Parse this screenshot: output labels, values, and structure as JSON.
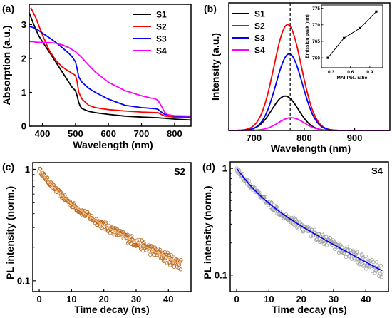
{
  "chart_data": [
    {
      "panel": "(a)",
      "type": "line",
      "xlabel": "Wavelength (nm)",
      "ylabel": "Absorption (a.u.)",
      "xlim": [
        360,
        850
      ],
      "ylim": [
        0,
        3.6
      ],
      "xticks": [
        400,
        500,
        600,
        700,
        800
      ],
      "yticks": [
        0,
        1,
        2,
        3
      ],
      "legend": "top-right",
      "series": [
        {
          "name": "S1",
          "color": "#000000",
          "x": [
            360,
            370,
            380,
            390,
            400,
            420,
            440,
            460,
            480,
            490,
            500,
            505,
            510,
            515,
            520,
            540,
            560,
            600,
            650,
            700,
            750,
            800,
            850
          ],
          "y": [
            3.35,
            3.1,
            2.85,
            2.65,
            2.5,
            2.2,
            1.9,
            1.6,
            1.3,
            1.15,
            1.05,
            0.9,
            0.7,
            0.58,
            0.52,
            0.44,
            0.4,
            0.35,
            0.3,
            0.27,
            0.25,
            0.21,
            0.18
          ]
        },
        {
          "name": "S2",
          "color": "#ff0000",
          "x": [
            365,
            370,
            380,
            390,
            400,
            420,
            440,
            460,
            480,
            490,
            500,
            505,
            510,
            520,
            540,
            560,
            600,
            650,
            700,
            750,
            760,
            770,
            800,
            850
          ],
          "y": [
            3.5,
            3.4,
            3.2,
            2.95,
            2.7,
            2.25,
            1.95,
            1.75,
            1.62,
            1.56,
            1.5,
            1.32,
            1.0,
            0.8,
            0.62,
            0.55,
            0.49,
            0.45,
            0.42,
            0.4,
            0.35,
            0.3,
            0.27,
            0.25
          ]
        },
        {
          "name": "S3",
          "color": "#0000ff",
          "x": [
            360,
            370,
            380,
            390,
            400,
            420,
            440,
            460,
            480,
            490,
            500,
            505,
            510,
            520,
            540,
            560,
            600,
            650,
            700,
            740,
            750,
            760,
            770,
            800,
            850
          ],
          "y": [
            2.95,
            2.92,
            2.88,
            2.82,
            2.75,
            2.62,
            2.48,
            2.32,
            2.15,
            2.05,
            1.9,
            1.7,
            1.45,
            1.3,
            1.12,
            1.0,
            0.8,
            0.62,
            0.55,
            0.52,
            0.5,
            0.42,
            0.35,
            0.3,
            0.28
          ]
        },
        {
          "name": "S4",
          "color": "#ff00ff",
          "x": [
            360,
            370,
            380,
            400,
            420,
            440,
            460,
            480,
            500,
            520,
            540,
            560,
            600,
            650,
            700,
            730,
            740,
            750,
            760,
            770,
            780,
            800,
            850
          ],
          "y": [
            2.5,
            2.5,
            2.48,
            2.47,
            2.47,
            2.45,
            2.4,
            2.32,
            2.2,
            2.02,
            1.8,
            1.6,
            1.3,
            1.05,
            0.9,
            0.83,
            0.82,
            0.76,
            0.6,
            0.42,
            0.34,
            0.31,
            0.3
          ]
        }
      ]
    },
    {
      "panel": "(b)",
      "type": "line",
      "xlabel": "Wavelength (nm)",
      "ylabel": "Intensity (a.u.)",
      "xlim": [
        650,
        970
      ],
      "xticks": [
        700,
        800,
        900
      ],
      "ylim": [
        0,
        1.0
      ],
      "legend": "top-left",
      "peak_marker_nm": 772,
      "series": [
        {
          "name": "S1",
          "color": "#000000",
          "center": 762,
          "fwhm": 62,
          "amplitude": 0.27
        },
        {
          "name": "S2",
          "color": "#ff0000",
          "center": 767,
          "fwhm": 64,
          "amplitude": 0.83
        },
        {
          "name": "S3",
          "color": "#0000ff",
          "center": 770,
          "fwhm": 62,
          "amplitude": 0.6
        },
        {
          "name": "S4",
          "color": "#ff00ff",
          "center": 774,
          "fwhm": 60,
          "amplitude": 0.1
        }
      ],
      "inset": {
        "type": "line",
        "xlabel": "MAI:PbI₂ ratio",
        "ylabel": "Emission peak (nm)",
        "x": [
          0.25,
          0.5,
          0.75,
          1.0
        ],
        "y": [
          760,
          766,
          769,
          774
        ],
        "xlim": [
          0.15,
          1.1
        ],
        "ylim": [
          757,
          776
        ],
        "xticks": [
          "0.3",
          "0.6",
          "0.9"
        ],
        "yticks": [
          "760",
          "765",
          "770",
          "775"
        ]
      }
    },
    {
      "panel": "(c)",
      "type": "scatter",
      "tag": "S2",
      "xlabel": "Time decay (ns)",
      "ylabel": "PL intensity (norm.)",
      "xlim": [
        -2,
        47
      ],
      "ylim": [
        0.08,
        1.15
      ],
      "yscale": "log",
      "xticks": [
        0,
        10,
        20,
        30,
        40
      ],
      "ytick_labels": [
        "1",
        "0.1"
      ],
      "marker_color": "#b5651d",
      "fit_color": "#ffb366",
      "decay": {
        "x_start": 0,
        "x_end": 44,
        "step": 0.18,
        "y_start": 1.0,
        "y_end_approx": 0.14,
        "noise_pct": 8
      }
    },
    {
      "panel": "(d)",
      "type": "scatter",
      "tag": "S4",
      "xlabel": "Time decay (ns)",
      "ylabel": "PL intensity (norm.)",
      "xlim": [
        -2,
        47
      ],
      "ylim": [
        0.07,
        1.15
      ],
      "yscale": "log",
      "xticks": [
        0,
        10,
        20,
        30,
        40
      ],
      "ytick_labels": [
        "1",
        "0.1"
      ],
      "marker_color": "#a0a0a0",
      "fit_color": "#0000ff",
      "decay": {
        "x_start": 0,
        "x_end": 45,
        "step": 0.18,
        "y_start": 1.0,
        "y_end_approx": 0.11,
        "noise_pct": 9
      }
    }
  ]
}
